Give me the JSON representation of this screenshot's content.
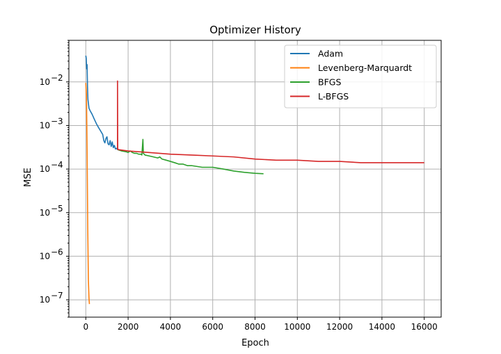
{
  "chart_data": {
    "type": "line",
    "title": "Optimizer History",
    "xlabel": "Epoch",
    "ylabel": "MSE",
    "xlim": [
      -800,
      16800
    ],
    "ylim": [
      4e-08,
      0.09
    ],
    "yscale": "log",
    "grid": true,
    "legend": "top-right",
    "xticks": [
      0,
      2000,
      4000,
      6000,
      8000,
      10000,
      12000,
      14000,
      16000
    ],
    "xtick_labels": [
      "0",
      "2000",
      "4000",
      "6000",
      "8000",
      "10000",
      "12000",
      "14000",
      "16000"
    ],
    "yticks": [
      1e-07,
      1e-06,
      1e-05,
      0.0001,
      0.001,
      0.01
    ],
    "ytick_bases": [
      "10",
      "10",
      "10",
      "10",
      "10",
      "10"
    ],
    "ytick_exps": [
      "−7",
      "−6",
      "−5",
      "−4",
      "−3",
      "−2"
    ],
    "series": [
      {
        "name": "Adam",
        "color": "#1f77b4",
        "points": [
          [
            0,
            0.04
          ],
          [
            20,
            0.035
          ],
          [
            40,
            0.02
          ],
          [
            60,
            0.025
          ],
          [
            80,
            0.008
          ],
          [
            100,
            0.004
          ],
          [
            150,
            0.0025
          ],
          [
            200,
            0.0022
          ],
          [
            300,
            0.0018
          ],
          [
            400,
            0.0014
          ],
          [
            500,
            0.0011
          ],
          [
            600,
            0.0009
          ],
          [
            700,
            0.00075
          ],
          [
            800,
            0.00062
          ],
          [
            850,
            0.00045
          ],
          [
            900,
            0.0004
          ],
          [
            950,
            0.0005
          ],
          [
            1000,
            0.00055
          ],
          [
            1050,
            0.00038
          ],
          [
            1100,
            0.00036
          ],
          [
            1150,
            0.00045
          ],
          [
            1200,
            0.00033
          ],
          [
            1250,
            0.00042
          ],
          [
            1300,
            0.00031
          ],
          [
            1350,
            0.00035
          ],
          [
            1400,
            0.00029
          ],
          [
            1450,
            0.0003
          ],
          [
            1500,
            0.00028
          ]
        ]
      },
      {
        "name": "Levenberg-Marquardt",
        "color": "#ff7f0e",
        "points": [
          [
            0,
            0.0095
          ],
          [
            30,
            0.005
          ],
          [
            60,
            0.0003
          ],
          [
            90,
            5e-06
          ],
          [
            120,
            3e-07
          ],
          [
            150,
            1.1e-07
          ],
          [
            170,
            8e-08
          ]
        ]
      },
      {
        "name": "BFGS",
        "color": "#2ca02c",
        "points": [
          [
            1500,
            0.00028
          ],
          [
            1700,
            0.00026
          ],
          [
            1900,
            0.00025
          ],
          [
            2000,
            0.00024
          ],
          [
            2100,
            0.00026
          ],
          [
            2200,
            0.00024
          ],
          [
            2300,
            0.00023
          ],
          [
            2400,
            0.00023
          ],
          [
            2500,
            0.00022
          ],
          [
            2600,
            0.00022
          ],
          [
            2650,
            0.00021
          ],
          [
            2700,
            0.00048
          ],
          [
            2720,
            0.00023
          ],
          [
            2800,
            0.00021
          ],
          [
            3000,
            0.0002
          ],
          [
            3200,
            0.00019
          ],
          [
            3400,
            0.00018
          ],
          [
            3500,
            0.00019
          ],
          [
            3600,
            0.00017
          ],
          [
            3800,
            0.00016
          ],
          [
            4000,
            0.00015
          ],
          [
            4200,
            0.00014
          ],
          [
            4400,
            0.00013
          ],
          [
            4600,
            0.00013
          ],
          [
            4800,
            0.00012
          ],
          [
            5000,
            0.00012
          ],
          [
            5500,
            0.00011
          ],
          [
            6000,
            0.00011
          ],
          [
            6500,
            0.0001
          ],
          [
            7000,
            9e-05
          ],
          [
            7500,
            8.4e-05
          ],
          [
            8000,
            8e-05
          ],
          [
            8400,
            7.8e-05
          ]
        ]
      },
      {
        "name": "L-BFGS",
        "color": "#d62728",
        "points": [
          [
            1500,
            0.00028
          ],
          [
            1500,
            0.0105
          ],
          [
            1510,
            0.0003
          ],
          [
            1520,
            0.00028
          ],
          [
            2000,
            0.00026
          ],
          [
            3000,
            0.00024
          ],
          [
            4000,
            0.00022
          ],
          [
            5000,
            0.00021
          ],
          [
            6000,
            0.0002
          ],
          [
            7000,
            0.00019
          ],
          [
            8000,
            0.00017
          ],
          [
            9000,
            0.00016
          ],
          [
            10000,
            0.00016
          ],
          [
            11000,
            0.00015
          ],
          [
            12000,
            0.00015
          ],
          [
            13000,
            0.00014
          ],
          [
            14000,
            0.00014
          ],
          [
            15000,
            0.00014
          ],
          [
            16000,
            0.00014
          ]
        ]
      }
    ]
  }
}
